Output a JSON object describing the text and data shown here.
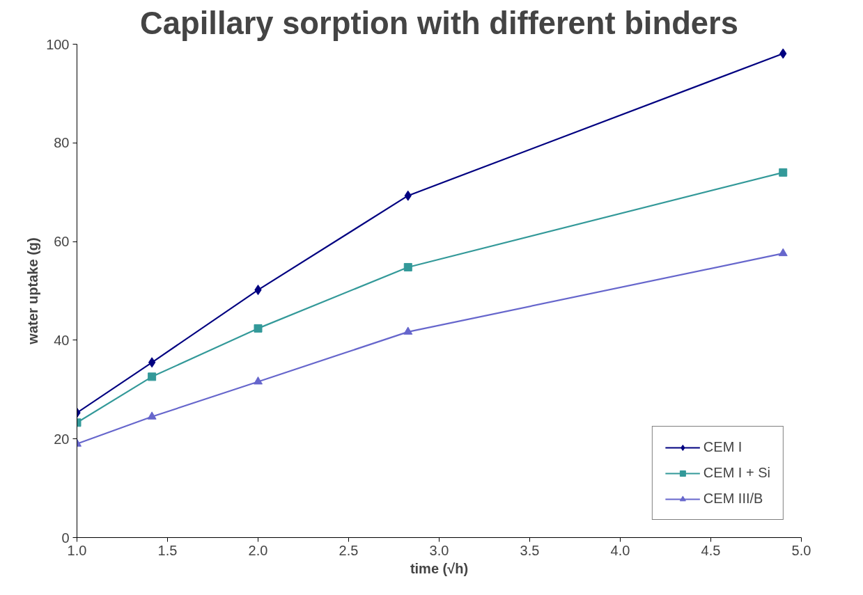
{
  "chart_data": {
    "type": "line",
    "title": "Capillary sorption with different binders",
    "xlabel": "time (√h)",
    "ylabel": "water uptake (g)",
    "x": [
      1,
      1.414,
      2,
      2.828,
      4.899
    ],
    "series": [
      {
        "name": "CEM I",
        "color": "#000080",
        "marker": "diamond",
        "values": [
          25.3,
          35.5,
          50.2,
          69.3,
          98.1
        ]
      },
      {
        "name": "CEM I + Si",
        "color": "#339999",
        "marker": "square",
        "values": [
          23.3,
          32.6,
          42.4,
          54.8,
          74.0
        ]
      },
      {
        "name": "CEM III/B",
        "color": "#6666cc",
        "marker": "triangle",
        "values": [
          19.0,
          24.5,
          31.6,
          41.7,
          57.6
        ]
      }
    ],
    "xlim": [
      1,
      5
    ],
    "xticks": [
      {
        "value": 1,
        "label": "1.0"
      },
      {
        "value": 1.5,
        "label": "1.5"
      },
      {
        "value": 2,
        "label": "2.0"
      },
      {
        "value": 2.5,
        "label": "2.5"
      },
      {
        "value": 3,
        "label": "3.0"
      },
      {
        "value": 3.5,
        "label": "3.5"
      },
      {
        "value": 4,
        "label": "4.0"
      },
      {
        "value": 4.5,
        "label": "4.5"
      },
      {
        "value": 5,
        "label": "5.0"
      }
    ],
    "ylim": [
      0,
      100
    ],
    "yticks": [
      0,
      20,
      40,
      60,
      80,
      100
    ],
    "grid": false,
    "legend": "bottom right",
    "line_style": "solid"
  }
}
